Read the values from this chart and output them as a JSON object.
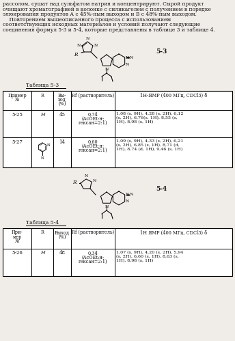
{
  "bg_color": "#f0ede8",
  "text_color": "#111111",
  "para1_lines": [
    "рассолом, сушат над сульфатом натрия и концентрируют. Сырой продукт",
    "очищают хроматографией в колонке с силикагелем с получением в порядке",
    "элюирования продуктов А с 45%-ным выходом и В с 48%-ным выходом."
  ],
  "para2_line1": "    Повторением вышеописанного процесса с использованием",
  "para2_line2": "соответствующих исходных материалов и условий получают следующие",
  "para2_line3": "соединения формул 5-3 и 5-4, которые представлены в таблице 3 и таблице 4.",
  "compound_label_1": "5-3",
  "compound_label_2": "5-4",
  "table1_title": "Таблица 5-3",
  "table1_col0_header": "Пример\n№",
  "table1_col1_header": "R",
  "table1_col2_header": "Вы-\nход\n(%)",
  "table1_col3_header": "Rf (растворитель)",
  "table1_col4_header": "1H-ЯМР (400 МГц, CDCl3) δ",
  "table1_row0": [
    "5-25",
    "H",
    "45",
    "0,74\n(AcOEt:н-\nгексан=2:1)",
    "1,08 (s, 9H), 4,28 (s, 2H), 6,12\n(s, 2H), 6,76(s, 1H), 8,55 (s,\n1H), 8,98 (s, 1H)"
  ],
  "table1_row1_num": "5-27",
  "table1_row1_yield": "14",
  "table1_row1_rf": "0,60\n(AcOEt:н-\nгексан=2:1)",
  "table1_row1_nmr": "1,09 (s, 9H), 4,33 (s, 2H), 6,21\n(s, 2H), 6,85 (s, 1H), 8,71 (d,\n1H), 8,74 (d, 1H), 9,46 (s, 1H)",
  "table2_title": "Таблица 5-4",
  "table2_col0_header": "При-\nмер\n№",
  "table2_col1_header": "R",
  "table2_col2_header": "Выход\n(%)",
  "table2_col3_header": "Rf (растворитель)",
  "table2_col4_header": "1H ЯМР (400 МГц, CDCl3) δ",
  "table2_row0": [
    "5-26",
    "H",
    "48",
    "0,34\n(AcOEt:н-\nгексан=2:1)",
    "1,07 (s, 9H), 4,20 (s, 2H), 5,94\n(s, 2H), 6,60 (s, 1H), 8,63 (s,\n1H), 8,98 (s, 1H)"
  ]
}
